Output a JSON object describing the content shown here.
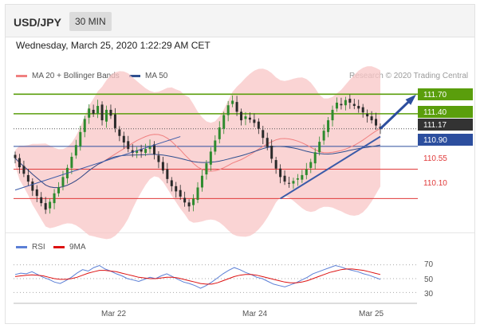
{
  "header": {
    "symbol": "USD/JPY",
    "timeframe": "30 MIN"
  },
  "timestamp": "Wednesday, March 25, 2020 1:22:29 AM CET",
  "legend": {
    "ma_bb": {
      "label": "MA 20 + Bollinger Bands",
      "color": "#f08080"
    },
    "ma50": {
      "label": "MA 50",
      "color": "#2f4f8f"
    }
  },
  "credit": "Research © 2020 Trading Central",
  "colors": {
    "up": "#2e8b2e",
    "down": "#2a2a2a",
    "resistance": "#5a9e0c",
    "support": "#e03a3a",
    "pivot": "#2c4e9e",
    "bands": "#f8c6c6",
    "rsi": "#5b7fd6",
    "rsi_ma": "#dd1111"
  },
  "chart_data": [
    {
      "type": "candlestick",
      "y_range": [
        109.8,
        111.85
      ],
      "x_ticks": [
        "Mar 22",
        "Mar 24",
        "Mar 25"
      ],
      "last_price": 111.17,
      "resistance": [
        111.7,
        111.4
      ],
      "pivot": 110.9,
      "support": [
        110.55,
        110.1
      ],
      "labels": {
        "r1": "111.70",
        "r2": "111.40",
        "last": "111.17",
        "pivot": "110.90",
        "s1": "110.55",
        "s2": "110.10"
      },
      "close": [
        110.72,
        110.58,
        110.48,
        110.36,
        110.22,
        110.14,
        110.03,
        109.93,
        110.05,
        110.18,
        110.27,
        110.43,
        110.57,
        110.74,
        110.92,
        111.12,
        111.32,
        111.48,
        111.4,
        111.52,
        111.3,
        111.46,
        111.37,
        111.18,
        111.06,
        110.96,
        110.86,
        110.8,
        110.84,
        110.82,
        110.86,
        110.91,
        110.78,
        110.66,
        110.53,
        110.4,
        110.29,
        110.21,
        110.13,
        110.04,
        109.98,
        110.1,
        110.27,
        110.45,
        110.64,
        110.82,
        110.99,
        111.19,
        111.38,
        111.53,
        111.6,
        111.43,
        111.3,
        111.36,
        111.31,
        111.26,
        111.17,
        111.03,
        110.89,
        110.71,
        110.56,
        110.43,
        110.36,
        110.33,
        110.37,
        110.41,
        110.46,
        110.55,
        110.66,
        110.81,
        110.97,
        111.14,
        111.3,
        111.46,
        111.57,
        111.53,
        111.61,
        111.57,
        111.52,
        111.48,
        111.42,
        111.36,
        111.3,
        111.22,
        111.17
      ]
    },
    {
      "type": "line",
      "series": [
        {
          "name": "RSI",
          "values": [
            56,
            58,
            57,
            60,
            56,
            52,
            49,
            45,
            43,
            47,
            52,
            58,
            63,
            61,
            66,
            69,
            64,
            61,
            57,
            54,
            50,
            48,
            46,
            49,
            52,
            50,
            54,
            57,
            53,
            49,
            45,
            43,
            40,
            36,
            40,
            45,
            51,
            57,
            62,
            66,
            63,
            59,
            56,
            52,
            50,
            46,
            42,
            40,
            38,
            41,
            44,
            48,
            52,
            57,
            60,
            63,
            66,
            69,
            67,
            64,
            62,
            60,
            57,
            55,
            52,
            49
          ]
        },
        {
          "name": "9MA",
          "values": [
            53,
            54,
            55,
            55.5,
            55,
            54,
            52,
            50,
            49,
            49,
            50,
            52,
            55,
            58,
            60,
            62,
            62,
            61,
            60,
            58,
            56,
            54,
            52,
            51,
            50,
            50,
            51,
            52,
            52,
            51,
            49,
            47,
            45,
            43,
            42,
            42,
            44,
            47,
            50,
            53,
            55,
            56,
            56,
            55,
            53,
            51,
            49,
            47,
            45,
            44,
            44,
            45,
            47,
            50,
            53,
            56,
            59,
            61,
            63,
            64,
            64,
            63,
            62,
            60,
            58,
            56
          ]
        }
      ],
      "levels": [
        70,
        50,
        30
      ],
      "labels": {
        "l70": "70",
        "l50": "50",
        "l30": "30"
      },
      "y_range": [
        20,
        80
      ]
    }
  ]
}
